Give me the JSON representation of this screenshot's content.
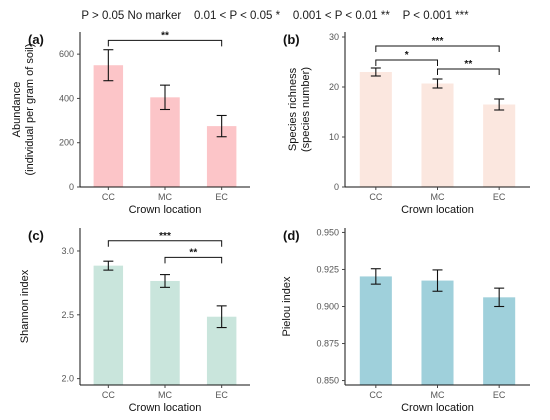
{
  "legend_text": "P > 0.05 No marker    0.01 < P < 0.05 *    0.001 < P < 0.01 **    P < 0.001 ***",
  "chart_data": [
    {
      "type": "bar",
      "panel_label": "(a)",
      "categories": [
        "CC",
        "MC",
        "EC"
      ],
      "values": [
        550,
        405,
        275
      ],
      "errors": [
        70,
        55,
        48
      ],
      "xlabel": "Crown location",
      "ylabel": [
        "Abundance",
        "(individual per gram of soil)"
      ],
      "ylim": [
        0,
        700
      ],
      "yticks": [
        0,
        200,
        400,
        600
      ],
      "yticklabels": [
        "0",
        "200",
        "400",
        "600"
      ],
      "bar_color": "#fcc5c8",
      "grid": false,
      "significance": [
        {
          "from": 0,
          "to": 2,
          "label": "**",
          "y": 662
        }
      ]
    },
    {
      "type": "bar",
      "panel_label": "(b)",
      "categories": [
        "CC",
        "MC",
        "EC"
      ],
      "values": [
        23.0,
        20.7,
        16.5
      ],
      "errors": [
        0.8,
        0.9,
        1.1
      ],
      "xlabel": "Crown location",
      "ylabel": [
        "Species richness",
        "(species number)"
      ],
      "ylim": [
        0,
        31
      ],
      "yticks": [
        0,
        10,
        20,
        30
      ],
      "yticklabels": [
        "0",
        "10",
        "20",
        "30"
      ],
      "bar_color": "#fbe7df",
      "grid": false,
      "significance": [
        {
          "from": 0,
          "to": 2,
          "label": "***",
          "y": 28.2
        },
        {
          "from": 0,
          "to": 1,
          "label": "*",
          "y": 25.4
        },
        {
          "from": 1,
          "to": 2,
          "label": "**",
          "y": 23.6
        }
      ]
    },
    {
      "type": "bar",
      "panel_label": "(c)",
      "categories": [
        "CC",
        "MC",
        "EC"
      ],
      "values": [
        2.885,
        2.765,
        2.485
      ],
      "errors": [
        0.035,
        0.05,
        0.085
      ],
      "xlabel": "Crown location",
      "ylabel": [
        "Shannon index"
      ],
      "ylim": [
        1.95,
        3.18
      ],
      "yticks": [
        2.0,
        2.5,
        3.0
      ],
      "yticklabels": [
        "2.0",
        "2.5",
        "3.0"
      ],
      "bar_color": "#c9e5dc",
      "grid": false,
      "significance": [
        {
          "from": 0,
          "to": 2,
          "label": "***",
          "y": 3.08
        },
        {
          "from": 1,
          "to": 2,
          "label": "**",
          "y": 2.95
        }
      ]
    },
    {
      "type": "bar",
      "panel_label": "(d)",
      "categories": [
        "CC",
        "MC",
        "EC"
      ],
      "values": [
        0.9203,
        0.9175,
        0.9062
      ],
      "errors": [
        0.0052,
        0.0072,
        0.0062
      ],
      "xlabel": "Crown location",
      "ylabel": [
        "Pielou index"
      ],
      "ylim": [
        0.847,
        0.953
      ],
      "yticks": [
        0.85,
        0.875,
        0.9,
        0.925,
        0.95
      ],
      "yticklabels": [
        "0.850",
        "0.875",
        "0.900",
        "0.925",
        "0.950"
      ],
      "bar_color": "#9fd0db",
      "grid": false,
      "significance": []
    }
  ]
}
